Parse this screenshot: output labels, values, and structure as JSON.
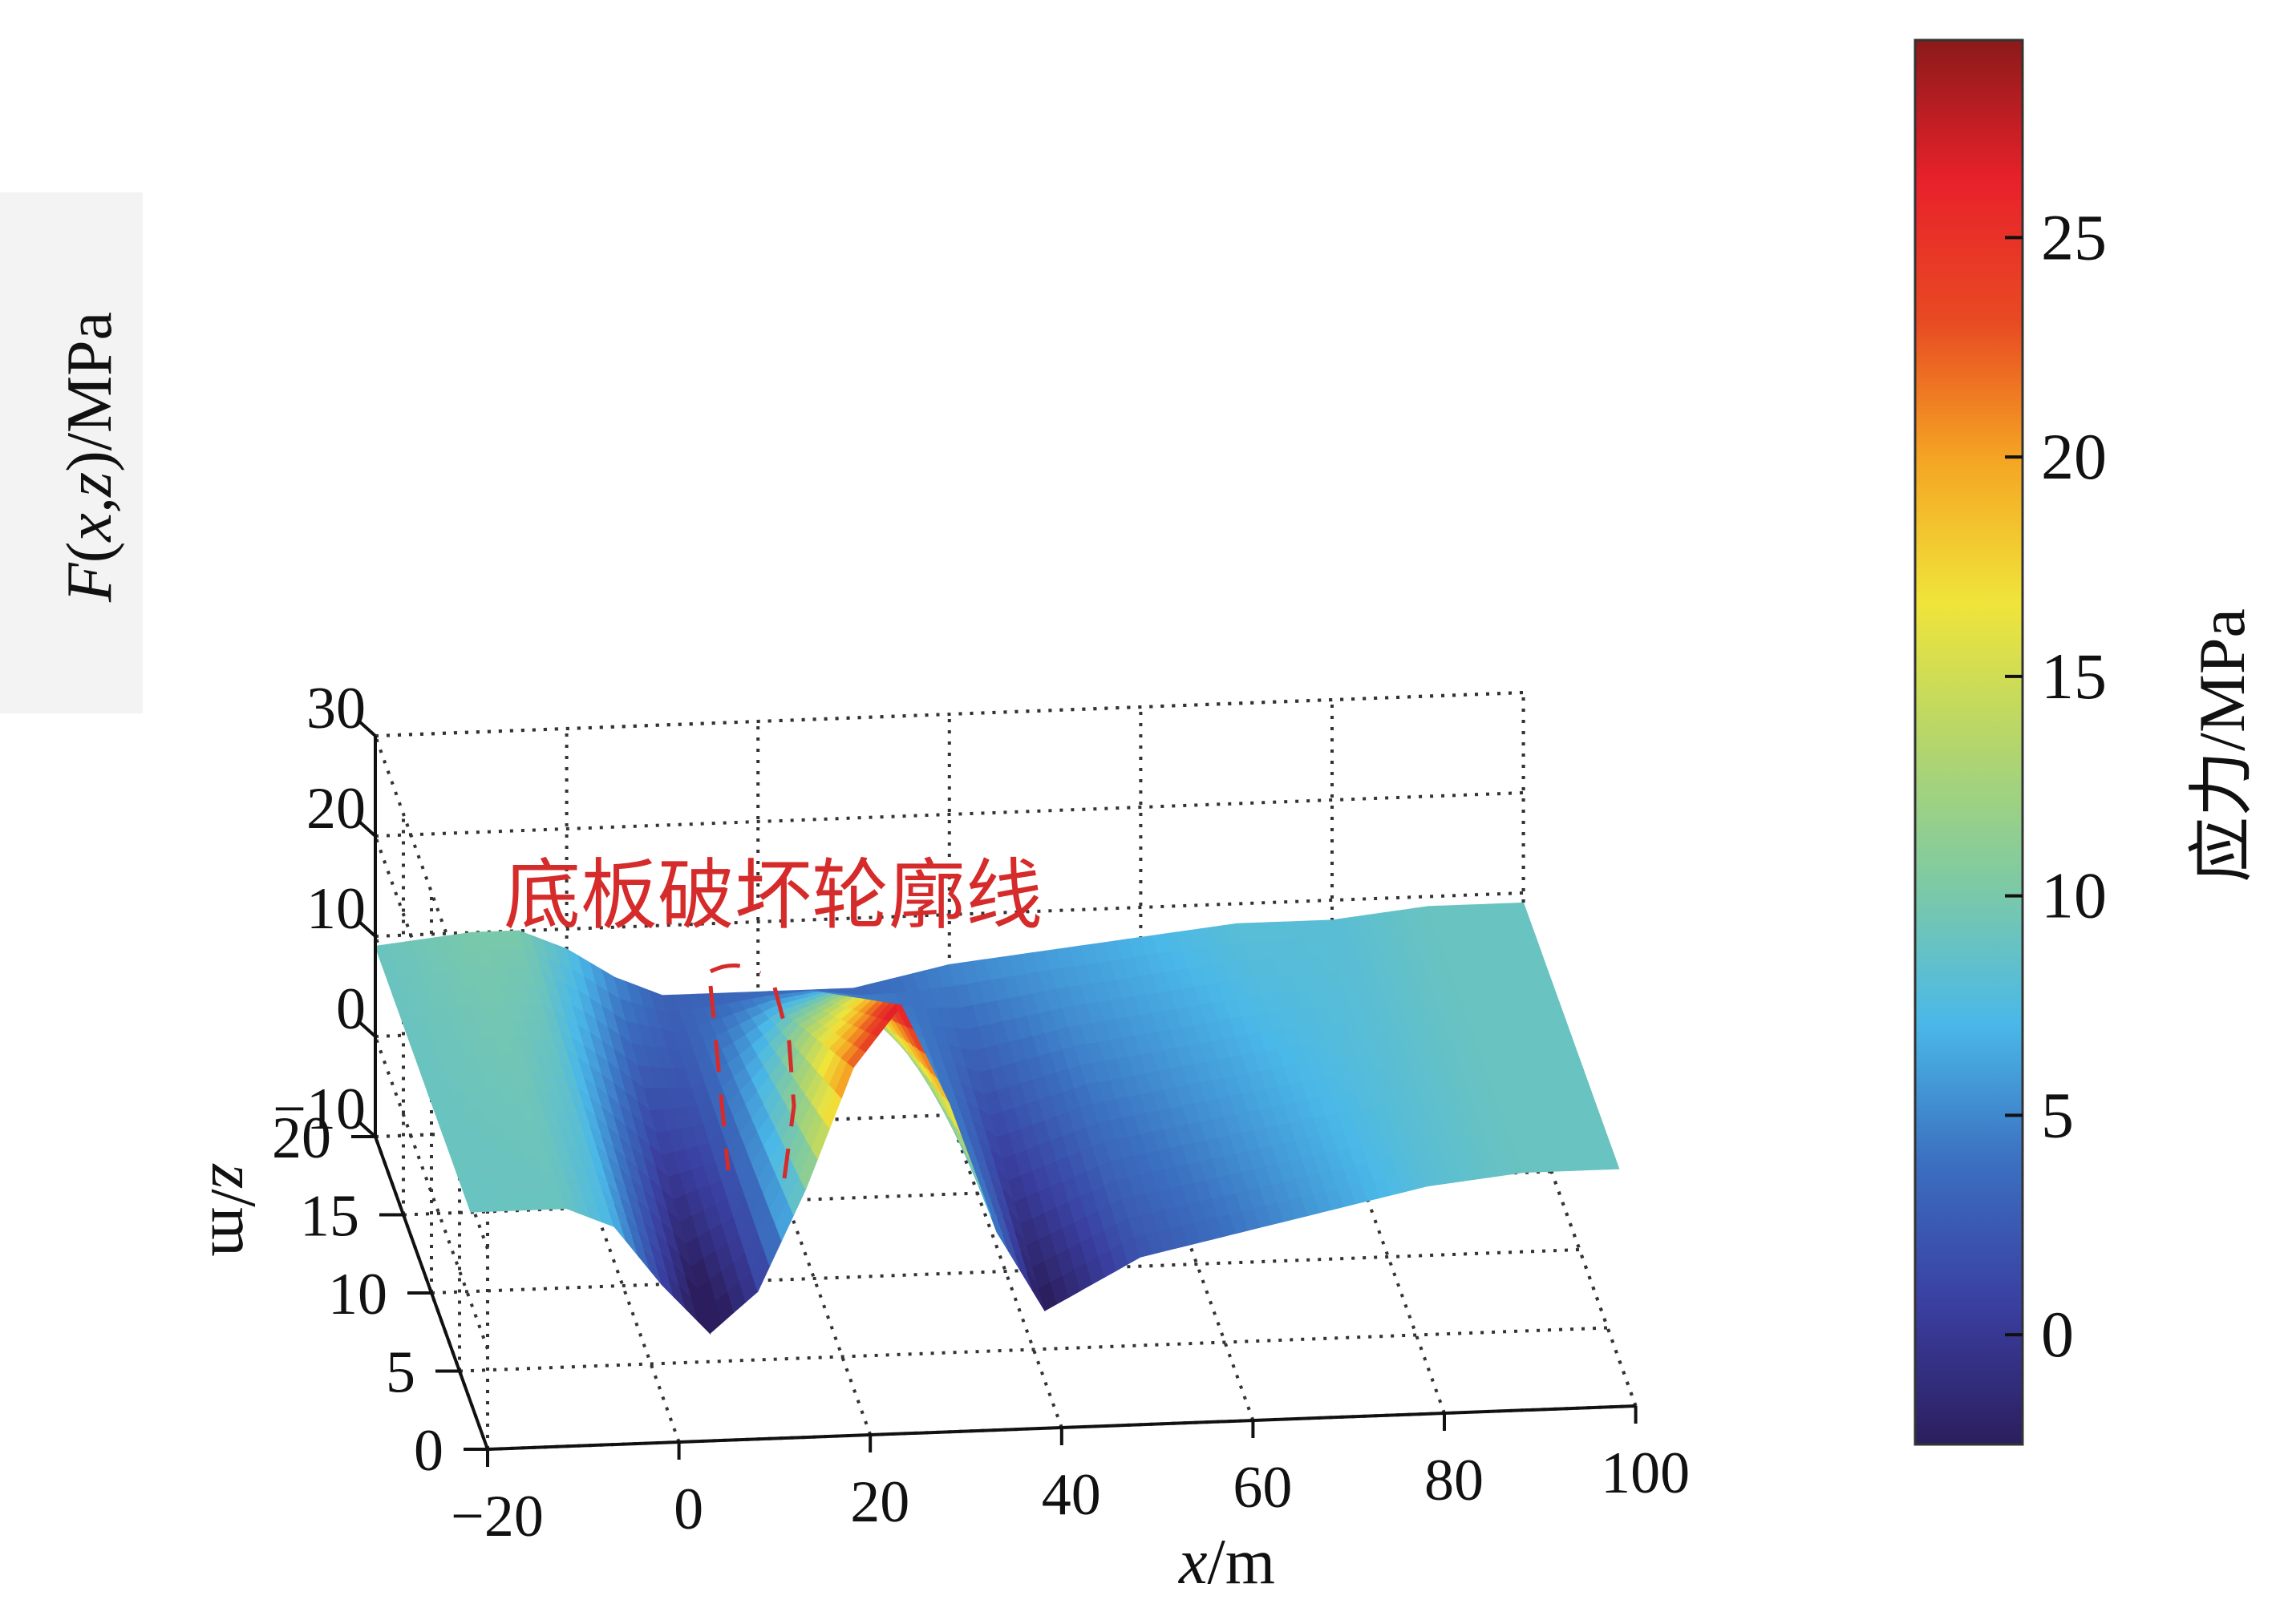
{
  "chart_data": {
    "type": "surface",
    "xlabel": "x/m",
    "ylabel": "z/m",
    "zlabel": "F(x,z)/MPa",
    "xlim": [
      -20,
      100
    ],
    "ylim": [
      0,
      20
    ],
    "zlim": [
      -10,
      30
    ],
    "xticks": [
      -20,
      0,
      20,
      40,
      60,
      80,
      100
    ],
    "yticks": [
      0,
      5,
      10,
      15,
      20
    ],
    "zticks": [
      -10,
      0,
      10,
      20,
      30
    ],
    "grid": true,
    "colormap": [
      "#2c1e5e",
      "#3a3fa0",
      "#3b6fc0",
      "#4ab8e8",
      "#7ecaa4",
      "#b4d66b",
      "#f0e43a",
      "#f5a623",
      "#e84a23",
      "#e8212a",
      "#8b1a1a"
    ],
    "colorbar": {
      "label": "应力/MPa",
      "ticks": [
        0,
        5,
        10,
        15,
        20,
        25
      ],
      "range": [
        -2.5,
        29.5
      ]
    },
    "annotation": "底板破坏轮廓线",
    "profile_along_x": {
      "x": [
        -20,
        -10,
        -5,
        0,
        5,
        10,
        15,
        20,
        25,
        30,
        35,
        40,
        50,
        60,
        70,
        80,
        90,
        100
      ],
      "F_near_face_z0": [
        9,
        9,
        7,
        1,
        -4,
        0,
        10,
        22,
        28,
        18,
        5,
        -3,
        2,
        4,
        6,
        8,
        9,
        9
      ],
      "F_far_z20": [
        9,
        10,
        10,
        8,
        5,
        3,
        3,
        3,
        3,
        3,
        4,
        5,
        6,
        7,
        8,
        8,
        9,
        9
      ]
    }
  }
}
